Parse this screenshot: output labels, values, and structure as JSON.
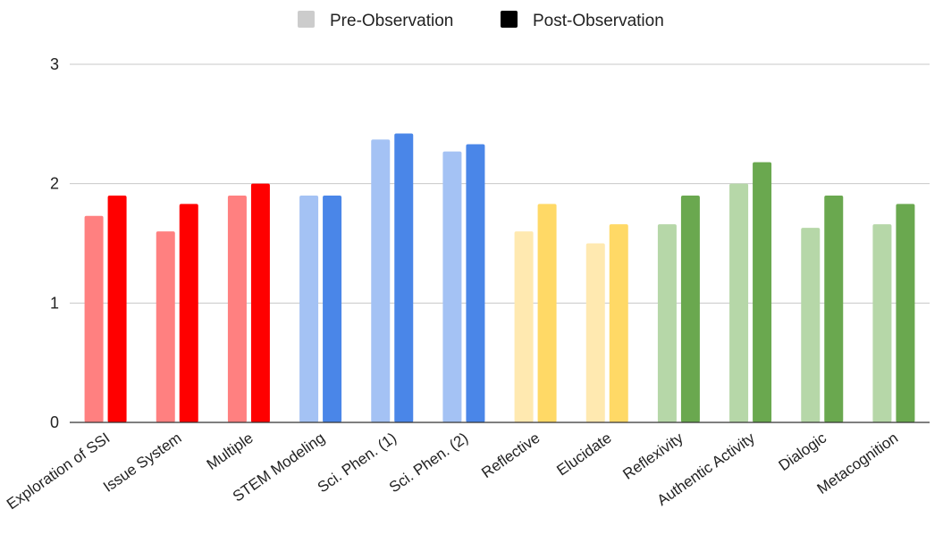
{
  "chart_data": {
    "type": "bar",
    "title": "",
    "xlabel": "",
    "ylabel": "",
    "ylim": [
      0,
      3
    ],
    "yticks": [
      0,
      1,
      2,
      3
    ],
    "grid": true,
    "legend_position": "top-center",
    "categories": [
      "Exploration of SSI",
      "Issue System",
      "Multiple",
      "STEM Modeling",
      "Sci. Phen. (1)",
      "Sci. Phen. (2)",
      "Reflective",
      "Elucidate",
      "Reflexivity",
      "Authentic Activity",
      "Dialogic",
      "Metacognition"
    ],
    "series": [
      {
        "name": "Pre-Observation",
        "legend_color": "#cccccc",
        "values": [
          1.73,
          1.6,
          1.9,
          1.9,
          2.37,
          2.27,
          1.6,
          1.5,
          1.66,
          2.0,
          1.63,
          1.66
        ],
        "colors": [
          "#ff8080",
          "#ff8080",
          "#ff8080",
          "#a4c2f4",
          "#a4c2f4",
          "#a4c2f4",
          "#ffe9b0",
          "#ffe9b0",
          "#b6d7a8",
          "#b6d7a8",
          "#b6d7a8",
          "#b6d7a8"
        ]
      },
      {
        "name": "Post-Observation",
        "legend_color": "#000000",
        "values": [
          1.9,
          1.83,
          2.0,
          1.9,
          2.42,
          2.33,
          1.83,
          1.66,
          1.9,
          2.18,
          1.9,
          1.83
        ],
        "colors": [
          "#ff0000",
          "#ff0000",
          "#ff0000",
          "#4a86e8",
          "#4a86e8",
          "#4a86e8",
          "#ffd966",
          "#ffd966",
          "#6aa84f",
          "#6aa84f",
          "#6aa84f",
          "#6aa84f"
        ]
      }
    ]
  }
}
